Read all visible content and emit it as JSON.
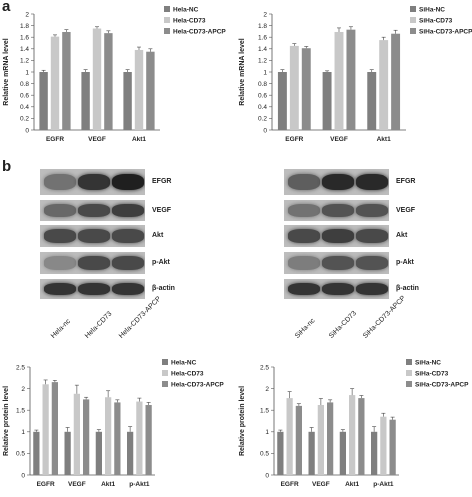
{
  "panel_labels": {
    "a": "a",
    "b": "b"
  },
  "colors": {
    "NC": "#7f7f7f",
    "CD73": "#c8c8c8",
    "APCP": "#8c8c8c",
    "axis": "#555555"
  },
  "chart_data": [
    {
      "type": "bar",
      "ylabel": "Relative mRNA level",
      "categories": [
        "EGFR",
        "VEGF",
        "Akt1"
      ],
      "ylim": [
        0,
        2
      ],
      "yticks": [
        "0",
        "0.2",
        "0.4",
        "0.6",
        "0.8",
        "1",
        "1.2",
        "1.4",
        "1.6",
        "1.8",
        "2"
      ],
      "legend_position": "top-right",
      "series": [
        {
          "name": "Hela-NC",
          "values": [
            1.0,
            1.0,
            1.0
          ],
          "errors": [
            0.03,
            0.04,
            0.04
          ]
        },
        {
          "name": "Hela-CD73",
          "values": [
            1.61,
            1.75,
            1.38
          ],
          "errors": [
            0.03,
            0.03,
            0.05
          ]
        },
        {
          "name": "Hela-CD73-APCP",
          "values": [
            1.69,
            1.67,
            1.35
          ],
          "errors": [
            0.04,
            0.04,
            0.05
          ]
        }
      ]
    },
    {
      "type": "bar",
      "ylabel": "Relative mRNA level",
      "categories": [
        "EGFR",
        "VEGF",
        "Akt1"
      ],
      "ylim": [
        0,
        2
      ],
      "yticks": [
        "0",
        "0.2",
        "0.4",
        "0.6",
        "0.8",
        "1",
        "1.2",
        "1.4",
        "1.6",
        "1.8",
        "2"
      ],
      "legend_position": "top-right",
      "series": [
        {
          "name": "SiHa-NC",
          "values": [
            1.0,
            1.0,
            1.0
          ],
          "errors": [
            0.04,
            0.02,
            0.04
          ]
        },
        {
          "name": "SiHa-CD73",
          "values": [
            1.45,
            1.69,
            1.55
          ],
          "errors": [
            0.04,
            0.07,
            0.05
          ]
        },
        {
          "name": "SiHa-CD73-APCP",
          "values": [
            1.41,
            1.73,
            1.66
          ],
          "errors": [
            0.03,
            0.05,
            0.06
          ]
        }
      ]
    },
    {
      "type": "bar",
      "ylabel": "Relative protein level",
      "categories": [
        "EGFR",
        "VEGF",
        "Akt1",
        "p-Akt1"
      ],
      "ylim": [
        0,
        2.5
      ],
      "yticks": [
        "0",
        "0.5",
        "1",
        "1.5",
        "2",
        "2.5"
      ],
      "legend_position": "top-right",
      "series": [
        {
          "name": "Hela-NC",
          "values": [
            1.0,
            1.0,
            1.0,
            1.0
          ],
          "errors": [
            0.04,
            0.1,
            0.05,
            0.12
          ]
        },
        {
          "name": "Hela-CD73",
          "values": [
            2.1,
            1.88,
            1.8,
            1.7
          ],
          "errors": [
            0.1,
            0.2,
            0.15,
            0.08
          ]
        },
        {
          "name": "Hela-CD73-APCP",
          "values": [
            2.15,
            1.75,
            1.68,
            1.62
          ],
          "errors": [
            0.04,
            0.05,
            0.06,
            0.06
          ]
        }
      ]
    },
    {
      "type": "bar",
      "ylabel": "Relative protein level",
      "categories": [
        "EGFR",
        "VEGF",
        "Akt1",
        "p-Akt1"
      ],
      "ylim": [
        0,
        2.5
      ],
      "yticks": [
        "0",
        "0.5",
        "1",
        "1.5",
        "2",
        "2.5"
      ],
      "legend_position": "top-right",
      "series": [
        {
          "name": "SiHa-NC",
          "values": [
            1.0,
            1.0,
            1.0,
            1.0
          ],
          "errors": [
            0.04,
            0.1,
            0.05,
            0.12
          ]
        },
        {
          "name": "SiHa-CD73",
          "values": [
            1.78,
            1.62,
            1.85,
            1.35
          ],
          "errors": [
            0.15,
            0.15,
            0.15,
            0.08
          ]
        },
        {
          "name": "SiHa-CD73-APCP",
          "values": [
            1.6,
            1.68,
            1.78,
            1.28
          ],
          "errors": [
            0.05,
            0.06,
            0.06,
            0.06
          ]
        }
      ]
    }
  ],
  "blots": {
    "left": {
      "rows": [
        {
          "label": "EFGR",
          "intensity": [
            0.55,
            0.85,
            0.95
          ]
        },
        {
          "label": "VEGF",
          "intensity": [
            0.6,
            0.75,
            0.8
          ]
        },
        {
          "label": "Akt",
          "intensity": [
            0.75,
            0.75,
            0.75
          ]
        },
        {
          "label": "p-Akt",
          "intensity": [
            0.45,
            0.75,
            0.75
          ]
        },
        {
          "label": "β-actin",
          "intensity": [
            0.85,
            0.85,
            0.85
          ]
        }
      ],
      "lanes": [
        "Hela-nc",
        "Hela-CD73",
        "Hela-CD73-APCP"
      ]
    },
    "right": {
      "rows": [
        {
          "label": "EFGR",
          "intensity": [
            0.65,
            0.9,
            0.9
          ]
        },
        {
          "label": "VEGF",
          "intensity": [
            0.55,
            0.7,
            0.7
          ]
        },
        {
          "label": "Akt",
          "intensity": [
            0.75,
            0.8,
            0.75
          ]
        },
        {
          "label": "p-Akt",
          "intensity": [
            0.5,
            0.7,
            0.7
          ]
        },
        {
          "label": "β-actin",
          "intensity": [
            0.85,
            0.85,
            0.85
          ]
        }
      ],
      "lanes": [
        "SiHa-nc",
        "SiHa-CD73",
        "SiHa-CD73-APCP"
      ]
    }
  }
}
